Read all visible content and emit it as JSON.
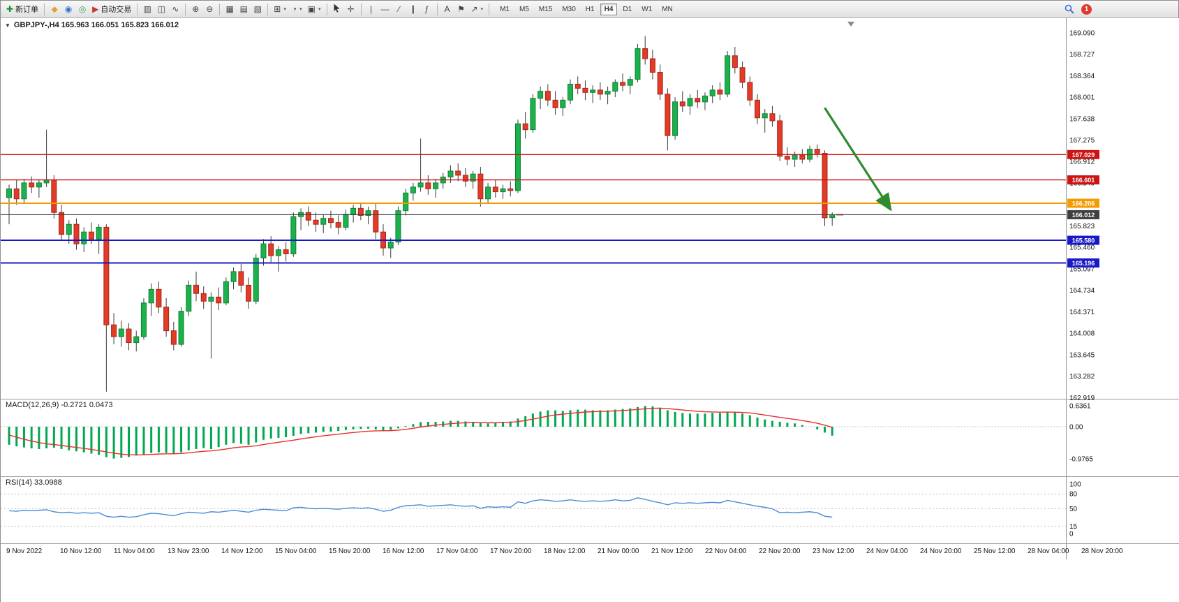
{
  "toolbar": {
    "groups": [
      {
        "items": [
          {
            "name": "new-order",
            "glyph": "✚",
            "color": "#18922c",
            "label": "新订单"
          }
        ]
      },
      {
        "items": [
          {
            "name": "market-watch",
            "glyph": "◆",
            "color": "#d9a43c"
          },
          {
            "name": "data-window",
            "glyph": "◉",
            "color": "#3b6fd6"
          },
          {
            "name": "navigator",
            "glyph": "◎",
            "color": "#3aa65c"
          },
          {
            "name": "auto-trading",
            "glyph": "▶",
            "color": "#c9392b",
            "label": "自动交易"
          }
        ]
      },
      {
        "items": [
          {
            "name": "bar-chart",
            "glyph": "▥"
          },
          {
            "name": "candlestick-chart",
            "glyph": "◫"
          },
          {
            "name": "line-chart",
            "glyph": "∿"
          }
        ]
      },
      {
        "items": [
          {
            "name": "zoom-in",
            "glyph": "⊕"
          },
          {
            "name": "zoom-out",
            "glyph": "⊖"
          }
        ]
      },
      {
        "items": [
          {
            "name": "tile-windows",
            "glyph": "▦"
          },
          {
            "name": "arrange-windows",
            "glyph": "▤"
          },
          {
            "name": "cascade-windows",
            "glyph": "▧"
          }
        ]
      },
      {
        "items": [
          {
            "name": "new-chart",
            "glyph": "⊞",
            "caret": true
          },
          {
            "name": "periods",
            "glyph": "◔",
            "caret": true
          },
          {
            "name": "templates",
            "glyph": "▣",
            "caret": true
          }
        ]
      },
      {
        "items": [
          {
            "name": "cursor",
            "glyph": "@cursor"
          },
          {
            "name": "crosshair",
            "glyph": "✛"
          }
        ]
      },
      {
        "items": [
          {
            "name": "vertical-line",
            "glyph": "|"
          },
          {
            "name": "horizontal-line",
            "glyph": "—"
          },
          {
            "name": "trendline",
            "glyph": "∕"
          },
          {
            "name": "equidistant-channel",
            "glyph": "∥"
          },
          {
            "name": "fibonacci",
            "glyph": "ƒ"
          }
        ]
      },
      {
        "items": [
          {
            "name": "text",
            "glyph": "A"
          },
          {
            "name": "text-label",
            "glyph": "⚑"
          },
          {
            "name": "arrows",
            "glyph": "↗",
            "caret": true
          }
        ]
      }
    ],
    "timeframes": {
      "list": [
        "M1",
        "M5",
        "M15",
        "M30",
        "H1",
        "H4",
        "D1",
        "W1",
        "MN"
      ],
      "active": "H4"
    },
    "right": {
      "badge": "1"
    }
  },
  "main_chart": {
    "collapse_arrow": "▼",
    "title": "GBPJPY-,H4 165.963 166.051 165.823 166.012"
  },
  "macd_panel": {
    "label": "MACD(12,26,9) -0.2721 0.0473"
  },
  "rsi_panel": {
    "label": "RSI(14) 33.0988"
  },
  "chart_data": {
    "type": "candlestick",
    "symbol": "GBPJPY-",
    "timeframe": "H4",
    "last_ohlc": {
      "open": 165.963,
      "high": 166.051,
      "low": 165.823,
      "close": 166.012
    },
    "ylim": [
      162.9,
      169.3
    ],
    "price_ticks": [
      "169.090",
      "168.727",
      "168.364",
      "168.001",
      "167.638",
      "167.275",
      "166.912",
      "166.549",
      "166.186",
      "165.823",
      "165.460",
      "165.097",
      "164.734",
      "164.371",
      "164.008",
      "163.645",
      "163.282",
      "162.919"
    ],
    "hlines": [
      {
        "price": 167.029,
        "label": "167.029",
        "color": "#cc1414",
        "width": 1.4
      },
      {
        "price": 166.601,
        "label": "166.601",
        "color": "#cc1414",
        "width": 1.4
      },
      {
        "price": 166.206,
        "label": "166.206",
        "color": "#f59b00",
        "width": 2
      },
      {
        "price": 166.012,
        "label": "166.012",
        "color": "#3f3f3f",
        "width": 1.2
      },
      {
        "price": 165.58,
        "label": "165.580",
        "color": "#1818c8",
        "width": 2
      },
      {
        "price": 165.196,
        "label": "165.196",
        "color": "#1818c8",
        "width": 2
      }
    ],
    "ohlc": [
      [
        166.3,
        166.52,
        165.85,
        166.45
      ],
      [
        166.45,
        166.6,
        166.18,
        166.28
      ],
      [
        166.28,
        166.62,
        166.2,
        166.55
      ],
      [
        166.55,
        166.66,
        166.38,
        166.48
      ],
      [
        166.48,
        166.6,
        166.3,
        166.55
      ],
      [
        166.55,
        167.45,
        166.48,
        166.6
      ],
      [
        166.6,
        166.68,
        165.95,
        166.05
      ],
      [
        166.05,
        166.18,
        165.58,
        165.68
      ],
      [
        165.68,
        165.92,
        165.52,
        165.85
      ],
      [
        165.85,
        165.95,
        165.42,
        165.52
      ],
      [
        165.52,
        165.8,
        165.38,
        165.72
      ],
      [
        165.72,
        165.88,
        165.52,
        165.6
      ],
      [
        165.6,
        165.85,
        165.35,
        165.8
      ],
      [
        165.8,
        165.85,
        163.02,
        164.15
      ],
      [
        164.15,
        164.35,
        163.82,
        163.95
      ],
      [
        163.95,
        164.22,
        163.78,
        164.08
      ],
      [
        164.08,
        164.18,
        163.72,
        163.85
      ],
      [
        163.85,
        164.05,
        163.7,
        163.95
      ],
      [
        163.95,
        164.6,
        163.9,
        164.52
      ],
      [
        164.52,
        164.85,
        164.3,
        164.75
      ],
      [
        164.75,
        164.88,
        164.35,
        164.45
      ],
      [
        164.45,
        164.6,
        163.95,
        164.05
      ],
      [
        164.05,
        164.2,
        163.72,
        163.82
      ],
      [
        163.82,
        164.45,
        163.78,
        164.38
      ],
      [
        164.38,
        164.9,
        164.3,
        164.82
      ],
      [
        164.82,
        165.05,
        164.55,
        164.68
      ],
      [
        164.68,
        164.8,
        164.42,
        164.55
      ],
      [
        164.55,
        164.7,
        163.58,
        164.62
      ],
      [
        164.62,
        164.78,
        164.4,
        164.52
      ],
      [
        164.52,
        164.95,
        164.48,
        164.88
      ],
      [
        164.88,
        165.12,
        164.75,
        165.05
      ],
      [
        165.05,
        165.18,
        164.7,
        164.82
      ],
      [
        164.82,
        164.95,
        164.42,
        164.55
      ],
      [
        164.55,
        165.35,
        164.5,
        165.28
      ],
      [
        165.28,
        165.6,
        165.15,
        165.52
      ],
      [
        165.52,
        165.65,
        165.2,
        165.32
      ],
      [
        165.32,
        165.48,
        165.05,
        165.42
      ],
      [
        165.42,
        165.55,
        165.22,
        165.35
      ],
      [
        165.35,
        166.05,
        165.3,
        165.98
      ],
      [
        165.98,
        166.12,
        165.75,
        166.05
      ],
      [
        166.05,
        166.15,
        165.82,
        165.92
      ],
      [
        165.92,
        166.05,
        165.72,
        165.85
      ],
      [
        165.85,
        166.02,
        165.7,
        165.95
      ],
      [
        165.95,
        166.08,
        165.78,
        165.88
      ],
      [
        165.88,
        166.0,
        165.68,
        165.8
      ],
      [
        165.8,
        166.1,
        165.75,
        166.02
      ],
      [
        166.02,
        166.18,
        165.88,
        166.12
      ],
      [
        166.12,
        166.22,
        165.92,
        166.0
      ],
      [
        166.0,
        166.15,
        165.85,
        166.08
      ],
      [
        166.08,
        166.2,
        165.6,
        165.72
      ],
      [
        165.72,
        165.85,
        165.32,
        165.45
      ],
      [
        165.45,
        165.62,
        165.28,
        165.55
      ],
      [
        165.55,
        166.15,
        165.5,
        166.08
      ],
      [
        166.08,
        166.45,
        166.0,
        166.38
      ],
      [
        166.38,
        166.55,
        166.25,
        166.48
      ],
      [
        166.48,
        167.3,
        166.4,
        166.55
      ],
      [
        166.55,
        166.68,
        166.35,
        166.45
      ],
      [
        166.45,
        166.62,
        166.3,
        166.55
      ],
      [
        166.55,
        166.72,
        166.45,
        166.65
      ],
      [
        166.65,
        166.85,
        166.55,
        166.75
      ],
      [
        166.75,
        166.88,
        166.58,
        166.68
      ],
      [
        166.68,
        166.8,
        166.48,
        166.58
      ],
      [
        166.58,
        166.75,
        166.45,
        166.7
      ],
      [
        166.7,
        166.82,
        166.15,
        166.28
      ],
      [
        166.28,
        166.55,
        166.2,
        166.48
      ],
      [
        166.48,
        166.6,
        166.3,
        166.4
      ],
      [
        166.4,
        166.52,
        166.28,
        166.45
      ],
      [
        166.45,
        166.58,
        166.32,
        166.42
      ],
      [
        166.42,
        167.62,
        166.38,
        167.55
      ],
      [
        167.55,
        167.75,
        167.3,
        167.45
      ],
      [
        167.45,
        168.05,
        167.4,
        167.98
      ],
      [
        167.98,
        168.18,
        167.8,
        168.1
      ],
      [
        168.1,
        168.22,
        167.85,
        167.95
      ],
      [
        167.95,
        168.1,
        167.7,
        167.82
      ],
      [
        167.82,
        168.0,
        167.68,
        167.95
      ],
      [
        167.95,
        168.3,
        167.88,
        168.22
      ],
      [
        168.22,
        168.35,
        168.05,
        168.15
      ],
      [
        168.15,
        168.28,
        167.95,
        168.08
      ],
      [
        168.08,
        168.2,
        167.9,
        168.12
      ],
      [
        168.12,
        168.25,
        167.95,
        168.05
      ],
      [
        168.05,
        168.18,
        167.88,
        168.1
      ],
      [
        168.1,
        168.3,
        168.0,
        168.25
      ],
      [
        168.25,
        168.4,
        168.1,
        168.2
      ],
      [
        168.2,
        168.35,
        168.05,
        168.3
      ],
      [
        168.3,
        168.9,
        168.25,
        168.82
      ],
      [
        168.82,
        169.03,
        168.55,
        168.65
      ],
      [
        168.65,
        168.8,
        168.3,
        168.42
      ],
      [
        168.42,
        168.55,
        167.95,
        168.05
      ],
      [
        168.05,
        168.15,
        167.1,
        167.35
      ],
      [
        167.35,
        168.0,
        167.28,
        167.92
      ],
      [
        167.92,
        168.1,
        167.75,
        167.85
      ],
      [
        167.85,
        168.05,
        167.7,
        167.98
      ],
      [
        167.98,
        168.12,
        167.82,
        167.92
      ],
      [
        167.92,
        168.08,
        167.78,
        168.02
      ],
      [
        168.02,
        168.2,
        167.9,
        168.12
      ],
      [
        168.12,
        168.25,
        167.95,
        168.05
      ],
      [
        168.05,
        168.78,
        168.0,
        168.7
      ],
      [
        168.7,
        168.85,
        168.4,
        168.5
      ],
      [
        168.5,
        168.6,
        168.15,
        168.25
      ],
      [
        168.25,
        168.35,
        167.85,
        167.95
      ],
      [
        167.95,
        168.05,
        167.55,
        167.65
      ],
      [
        167.65,
        167.8,
        167.4,
        167.72
      ],
      [
        167.72,
        167.85,
        167.5,
        167.6
      ],
      [
        167.6,
        167.7,
        166.92,
        167.0
      ],
      [
        167.0,
        167.15,
        166.85,
        166.95
      ],
      [
        166.95,
        167.08,
        166.82,
        167.02
      ],
      [
        167.02,
        167.12,
        166.88,
        166.95
      ],
      [
        166.95,
        167.18,
        166.9,
        167.12
      ],
      [
        167.12,
        167.2,
        166.98,
        167.05
      ],
      [
        167.05,
        167.1,
        165.82,
        165.96
      ],
      [
        165.963,
        166.051,
        165.823,
        166.012
      ]
    ],
    "macd": {
      "value": -0.2721,
      "signal_value": 0.0473,
      "axis_ticks": [
        {
          "label": "0.6361",
          "value": 0.6361
        },
        {
          "label": "0.00",
          "value": 0
        },
        {
          "label": "-0.9765",
          "value": -0.9765
        }
      ],
      "histogram": [
        -0.55,
        -0.6,
        -0.63,
        -0.66,
        -0.68,
        -0.66,
        -0.64,
        -0.68,
        -0.72,
        -0.75,
        -0.78,
        -0.82,
        -0.86,
        -0.93,
        -0.97,
        -0.95,
        -0.92,
        -0.88,
        -0.85,
        -0.8,
        -0.78,
        -0.8,
        -0.82,
        -0.78,
        -0.72,
        -0.68,
        -0.65,
        -0.68,
        -0.62,
        -0.55,
        -0.5,
        -0.52,
        -0.55,
        -0.48,
        -0.4,
        -0.36,
        -0.34,
        -0.32,
        -0.28,
        -0.22,
        -0.2,
        -0.18,
        -0.16,
        -0.15,
        -0.13,
        -0.1,
        -0.08,
        -0.07,
        -0.06,
        -0.08,
        -0.12,
        -0.1,
        -0.05,
        0.02,
        0.08,
        0.14,
        0.15,
        0.15,
        0.16,
        0.18,
        0.18,
        0.16,
        0.15,
        0.12,
        0.1,
        0.12,
        0.15,
        0.16,
        0.25,
        0.32,
        0.4,
        0.46,
        0.5,
        0.5,
        0.48,
        0.5,
        0.52,
        0.52,
        0.5,
        0.5,
        0.5,
        0.52,
        0.54,
        0.56,
        0.6,
        0.635,
        0.62,
        0.58,
        0.5,
        0.45,
        0.42,
        0.4,
        0.4,
        0.4,
        0.42,
        0.42,
        0.45,
        0.44,
        0.4,
        0.35,
        0.28,
        0.22,
        0.18,
        0.15,
        0.12,
        0.1,
        0.05,
        0.0,
        -0.08,
        -0.18,
        -0.2721
      ]
    },
    "rsi": {
      "period": 14,
      "value": 33.0988,
      "axis_ticks": [
        {
          "label": "100",
          "value": 100
        },
        {
          "label": "80",
          "value": 80
        },
        {
          "label": "50",
          "value": 50
        },
        {
          "label": "15",
          "value": 15
        },
        {
          "label": "0",
          "value": 0
        }
      ],
      "levels": [
        80,
        50,
        15
      ],
      "values": [
        46,
        45,
        47,
        46,
        47,
        48,
        44,
        42,
        43,
        41,
        42,
        41,
        42,
        35,
        33,
        35,
        33,
        34,
        38,
        41,
        40,
        38,
        36,
        40,
        43,
        42,
        41,
        44,
        43,
        45,
        47,
        45,
        43,
        47,
        49,
        48,
        47,
        46,
        52,
        53,
        51,
        50,
        51,
        50,
        49,
        51,
        52,
        51,
        52,
        49,
        45,
        47,
        53,
        56,
        57,
        58,
        55,
        56,
        57,
        58,
        56,
        55,
        56,
        51,
        54,
        53,
        54,
        53,
        64,
        61,
        66,
        68,
        67,
        65,
        66,
        68,
        66,
        65,
        66,
        65,
        66,
        68,
        66,
        67,
        72,
        69,
        65,
        62,
        58,
        62,
        61,
        62,
        61,
        62,
        63,
        62,
        67,
        64,
        61,
        58,
        55,
        53,
        50,
        42,
        43,
        42,
        43,
        44,
        42,
        35,
        33.1
      ]
    },
    "time_ticks": [
      "9 Nov 2022",
      "10 Nov 12:00",
      "11 Nov 04:00",
      "13 Nov 23:00",
      "14 Nov 12:00",
      "15 Nov 04:00",
      "15 Nov 20:00",
      "16 Nov 12:00",
      "17 Nov 04:00",
      "17 Nov 20:00",
      "18 Nov 12:00",
      "21 Nov 00:00",
      "21 Nov 12:00",
      "22 Nov 04:00",
      "22 Nov 20:00",
      "23 Nov 12:00",
      "24 Nov 04:00",
      "24 Nov 20:00",
      "25 Nov 12:00",
      "28 Nov 04:00",
      "28 Nov 20:00"
    ],
    "arrow": {
      "from_bar": 109,
      "from_price": 167.82,
      "to_bar": 117.8,
      "to_price": 166.1,
      "color": "#2e8b2e"
    },
    "colors": {
      "up": "#1db14c",
      "up_stroke": "#0e8138",
      "down": "#e23b28",
      "down_stroke": "#a8271a",
      "wick": "#3a3a3a",
      "macd_histogram": "#00a84f",
      "macd_signal": "#e82e2e",
      "rsi_line": "#4a8bd5",
      "last_tick": "#e0382e"
    }
  }
}
